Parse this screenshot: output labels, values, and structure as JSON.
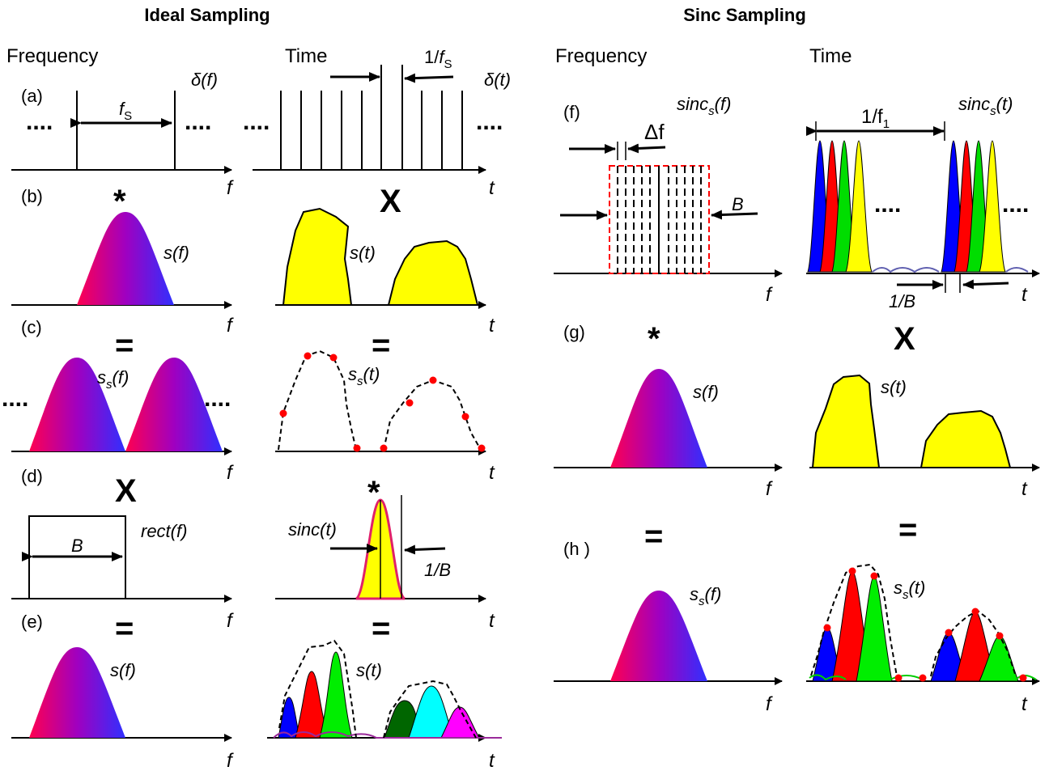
{
  "titles": {
    "ideal": "Ideal Sampling",
    "sinc": "Sinc Sampling"
  },
  "headers": {
    "frequency": "Frequency",
    "time": "Time"
  },
  "panel_labels": {
    "a": "(a)",
    "b": "(b)",
    "c": "(c)",
    "d": "(d)",
    "e": "(e)",
    "f": "(f)",
    "g": "(g)",
    "h": "(h )"
  },
  "axis": {
    "f": "f",
    "t": "t"
  },
  "ellipsis": "....",
  "operators": {
    "convolve": "*",
    "multiply": "X",
    "equals": "="
  },
  "math": {
    "delta_f": "δ(f)",
    "delta_t": "δ(t)",
    "fs": "f",
    "fs_sub": "S",
    "one_over": "1/",
    "s_f": "s(f)",
    "s_t": "s(t)",
    "ss_f": "s",
    "ss_f_rest": "(f)",
    "ss_t_rest": "(t)",
    "ss_sub": "s",
    "rect_f": "rect(f)",
    "sinc_t": "sinc(t)",
    "B": "B",
    "one_over_B": "1/B",
    "sincs_f": "sinc",
    "sincs_f_rest": "(f)",
    "sincs_t_rest": "(t)",
    "delta_small_f": "Δf",
    "one_over_f1": "1/f",
    "f1_sub": "1"
  },
  "colors": {
    "yellow": "#ffff00",
    "pulse_colors": [
      "#0000ff",
      "#ff0000",
      "#00dd00",
      "#ffff00"
    ],
    "dot": "#ff0000",
    "dashed_box": "#ff0000",
    "gradient": [
      "#ff0055",
      "#9900cc",
      "#3333ff"
    ]
  }
}
